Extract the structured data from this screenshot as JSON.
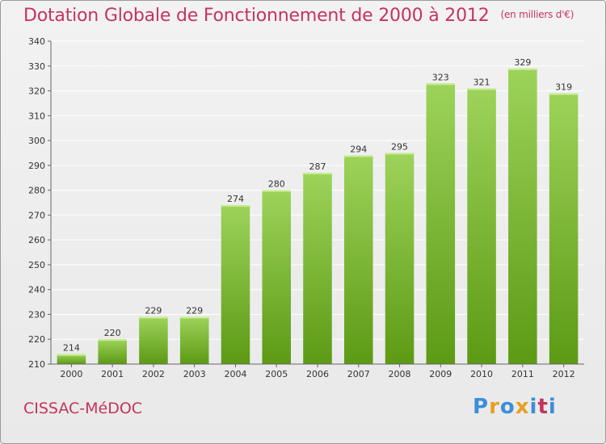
{
  "title": "Dotation Globale de Fonctionnement de 2000 à 2012",
  "unit": "(en milliers d'€)",
  "place": "CISSAC-MéDOC",
  "logo": {
    "text": "Proxiti",
    "colors": [
      "#3a8fd9",
      "#e8a020",
      "#3a8fd9",
      "#e8a020",
      "#3a8fd9",
      "#c4345e",
      "#3a8fd9"
    ]
  },
  "chart_data": {
    "type": "bar",
    "title": "Dotation Globale de Fonctionnement de 2000 à 2012",
    "subtitle": "(en milliers d'€)",
    "xlabel": "",
    "ylabel": "",
    "categories": [
      "2000",
      "2001",
      "2002",
      "2003",
      "2004",
      "2005",
      "2006",
      "2007",
      "2008",
      "2009",
      "2010",
      "2011",
      "2012"
    ],
    "values": [
      214,
      220,
      229,
      229,
      274,
      280,
      287,
      294,
      295,
      323,
      321,
      329,
      319
    ],
    "ylim": [
      210,
      340
    ],
    "yticks": [
      210,
      220,
      230,
      240,
      250,
      260,
      270,
      280,
      290,
      300,
      310,
      320,
      330,
      340
    ],
    "grid": true,
    "legend": "none",
    "bar_color_top": "#9dd35a",
    "bar_color_bottom": "#5c9a14",
    "grid_color": "#ffffff"
  }
}
